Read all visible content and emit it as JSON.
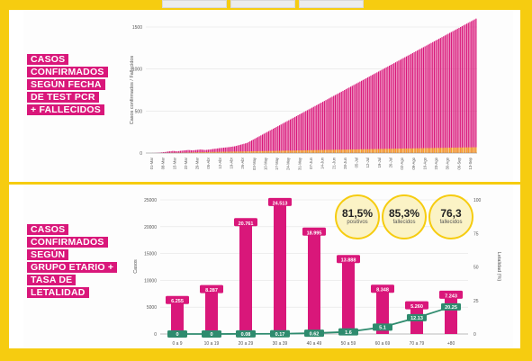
{
  "section_labels": {
    "top": [
      "CASOS",
      "CONFIRMADOS",
      "SEGÚN FECHA",
      "DE TEST PCR",
      "+ FALLECIDOS"
    ],
    "bottom": [
      "CASOS",
      "CONFIRMADOS",
      "SEGÚN",
      "GRUPO ETARIO +",
      "TASA DE",
      "LETALIDAD"
    ]
  },
  "colors": {
    "frame": "#f6cc10",
    "cases": "#d9177a",
    "deaths": "#f5a623",
    "lethality": "#2e8b6e"
  },
  "badges": [
    {
      "value": "81,5%",
      "caption": "positivos",
      "tag": ""
    },
    {
      "value": "85,3%",
      "caption": "fallecidos",
      "tag": ""
    },
    {
      "value": "76,3",
      "caption": "fallecidos",
      "tag": ""
    }
  ],
  "chart_data": [
    {
      "type": "bar",
      "ylabel": "Casos confirmados / Fallecidos",
      "ylim": [
        0,
        1500
      ],
      "yticks": [
        "0",
        "500",
        "1000",
        "1500"
      ],
      "xticks": [
        "01-Mar",
        "08-Mar",
        "15-Mar",
        "22-Mar",
        "29-Mar",
        "05-Abr",
        "12-Abr",
        "19-Abr",
        "26-Abr",
        "03-May",
        "10-May",
        "17-May",
        "24-May",
        "31-May",
        "07-Jun",
        "14-Jun",
        "21-Jun",
        "28-Jun",
        "05-Jul",
        "12-Jul",
        "19-Jul",
        "26-Jul",
        "02-Ago",
        "09-Ago",
        "16-Ago",
        "23-Ago",
        "30-Ago",
        "06-Sep",
        "13-Sep"
      ],
      "series": [
        {
          "values": [
            0,
            0,
            0,
            0,
            1,
            1,
            2,
            3,
            4,
            6,
            8,
            10,
            12,
            15,
            18,
            20,
            22,
            25,
            24,
            22,
            20,
            23,
            26,
            28,
            30,
            32,
            34,
            36,
            35,
            33,
            32,
            34,
            36,
            38,
            40,
            42,
            40,
            38,
            36,
            38,
            40,
            42,
            45,
            48,
            50,
            52,
            55,
            58,
            60,
            62,
            64,
            66,
            68,
            70,
            72,
            75,
            78,
            80,
            85,
            90,
            95,
            100,
            105,
            110,
            115,
            120,
            130,
            140,
            150,
            160,
            170,
            180,
            190,
            200,
            210,
            220,
            230,
            240,
            250,
            260,
            270,
            280,
            290,
            300,
            310,
            320,
            330,
            340,
            350,
            360,
            370,
            380,
            390,
            400,
            410,
            420,
            430,
            440,
            450,
            460,
            470,
            480,
            490,
            500,
            510,
            520,
            530,
            540,
            550,
            560,
            570,
            580,
            590,
            600,
            610,
            620,
            630,
            640,
            650,
            660,
            670,
            680,
            690,
            700,
            710,
            720,
            730,
            740,
            750,
            760,
            770,
            780,
            790,
            800,
            810,
            820,
            830,
            840,
            850,
            860,
            870,
            880,
            890,
            900,
            910,
            920,
            930,
            940,
            950,
            960,
            970,
            980,
            990,
            1000,
            1010,
            1020,
            1030,
            1040,
            1050,
            1060,
            1070,
            1080,
            1090,
            1100,
            1110,
            1120,
            1130,
            1140,
            1150,
            1160,
            1170,
            1180,
            1190,
            1200,
            1210,
            1220,
            1230,
            1240,
            1250,
            1260,
            1270,
            1280,
            1290,
            1300,
            1310,
            1320,
            1330,
            1340,
            1350,
            1360,
            1370,
            1380,
            1390,
            1400,
            1410,
            1420,
            1430,
            1440,
            1450,
            1460,
            1470,
            1480,
            1490,
            1500,
            1510,
            1520,
            1530,
            1540,
            1550,
            1560,
            1570,
            1580,
            1590,
            1600
          ]
        },
        {
          "values": [
            0,
            0,
            0,
            0,
            0,
            0,
            0,
            0,
            0,
            0,
            0,
            0,
            1,
            1,
            1,
            2,
            2,
            2,
            3,
            3,
            3,
            4,
            4,
            4,
            5,
            5,
            6,
            6,
            7,
            7,
            8,
            8,
            9,
            9,
            10,
            10,
            10,
            11,
            11,
            11,
            12,
            12,
            12,
            13,
            13,
            13,
            14,
            14,
            14,
            15,
            15,
            15,
            16,
            16,
            16,
            17,
            17,
            17,
            18,
            18,
            18,
            19,
            19,
            19,
            20,
            20,
            20,
            21,
            21,
            21,
            22,
            22,
            22,
            23,
            23,
            23,
            24,
            24,
            24,
            25,
            25,
            25,
            26,
            26,
            26,
            27,
            27,
            27,
            28,
            28,
            28,
            29,
            29,
            29,
            30,
            30,
            30,
            31,
            31,
            31,
            32,
            32,
            32,
            33,
            33,
            33,
            34,
            34,
            34,
            35,
            35,
            35,
            36,
            36,
            36,
            37,
            37,
            37,
            38,
            38,
            38,
            39,
            39,
            39,
            40,
            40,
            40,
            41,
            41,
            41,
            42,
            42,
            42,
            43,
            43,
            43,
            44,
            44,
            44,
            45,
            45,
            45,
            46,
            46,
            46,
            47,
            47,
            47,
            48,
            48,
            48,
            49,
            49,
            49,
            50,
            50,
            50,
            51,
            51,
            51,
            52,
            52,
            52,
            53,
            53,
            53,
            54,
            54,
            54,
            55,
            55,
            55,
            56,
            56,
            56,
            57,
            57,
            57,
            58,
            58,
            58,
            59,
            59,
            59,
            60,
            60,
            60,
            61,
            61,
            61,
            62,
            62,
            62,
            63,
            63,
            63,
            64,
            64,
            64,
            65,
            65,
            65,
            66,
            66,
            66,
            67,
            67,
            67,
            68,
            68,
            68,
            69,
            69,
            69
          ]
        }
      ]
    },
    {
      "type": "bar",
      "ylabel": "Casos",
      "y2label": "Letalidad (%)",
      "ylim": [
        0,
        25000
      ],
      "y2lim": [
        0,
        100
      ],
      "yticks": [
        "0",
        "5000",
        "10000",
        "15000",
        "20000",
        "25000"
      ],
      "y2ticks": [
        "0",
        "25",
        "50",
        "75",
        "100"
      ],
      "categories": [
        "0 a 9",
        "10 a 19",
        "20 a 29",
        "30 a 39",
        "40 a 49",
        "50 a 59",
        "60 a 69",
        "70 a 79",
        "+80"
      ],
      "values": [
        6255,
        8287,
        20761,
        24513,
        18995,
        13888,
        8348,
        5260,
        7243
      ],
      "value_labels": [
        "6.255",
        "8.287",
        "20.761",
        "24.513",
        "18.995",
        "13.888",
        "8.348",
        "5.260",
        "7.243"
      ],
      "lethality": [
        0,
        0,
        0.08,
        0.17,
        0.62,
        1.6,
        5.1,
        12.13,
        20.25
      ],
      "lethality_labels": [
        "0",
        "0",
        "0.08",
        "0.17",
        "0.62",
        "1.6",
        "5.1",
        "12.13",
        "20.25"
      ]
    }
  ]
}
